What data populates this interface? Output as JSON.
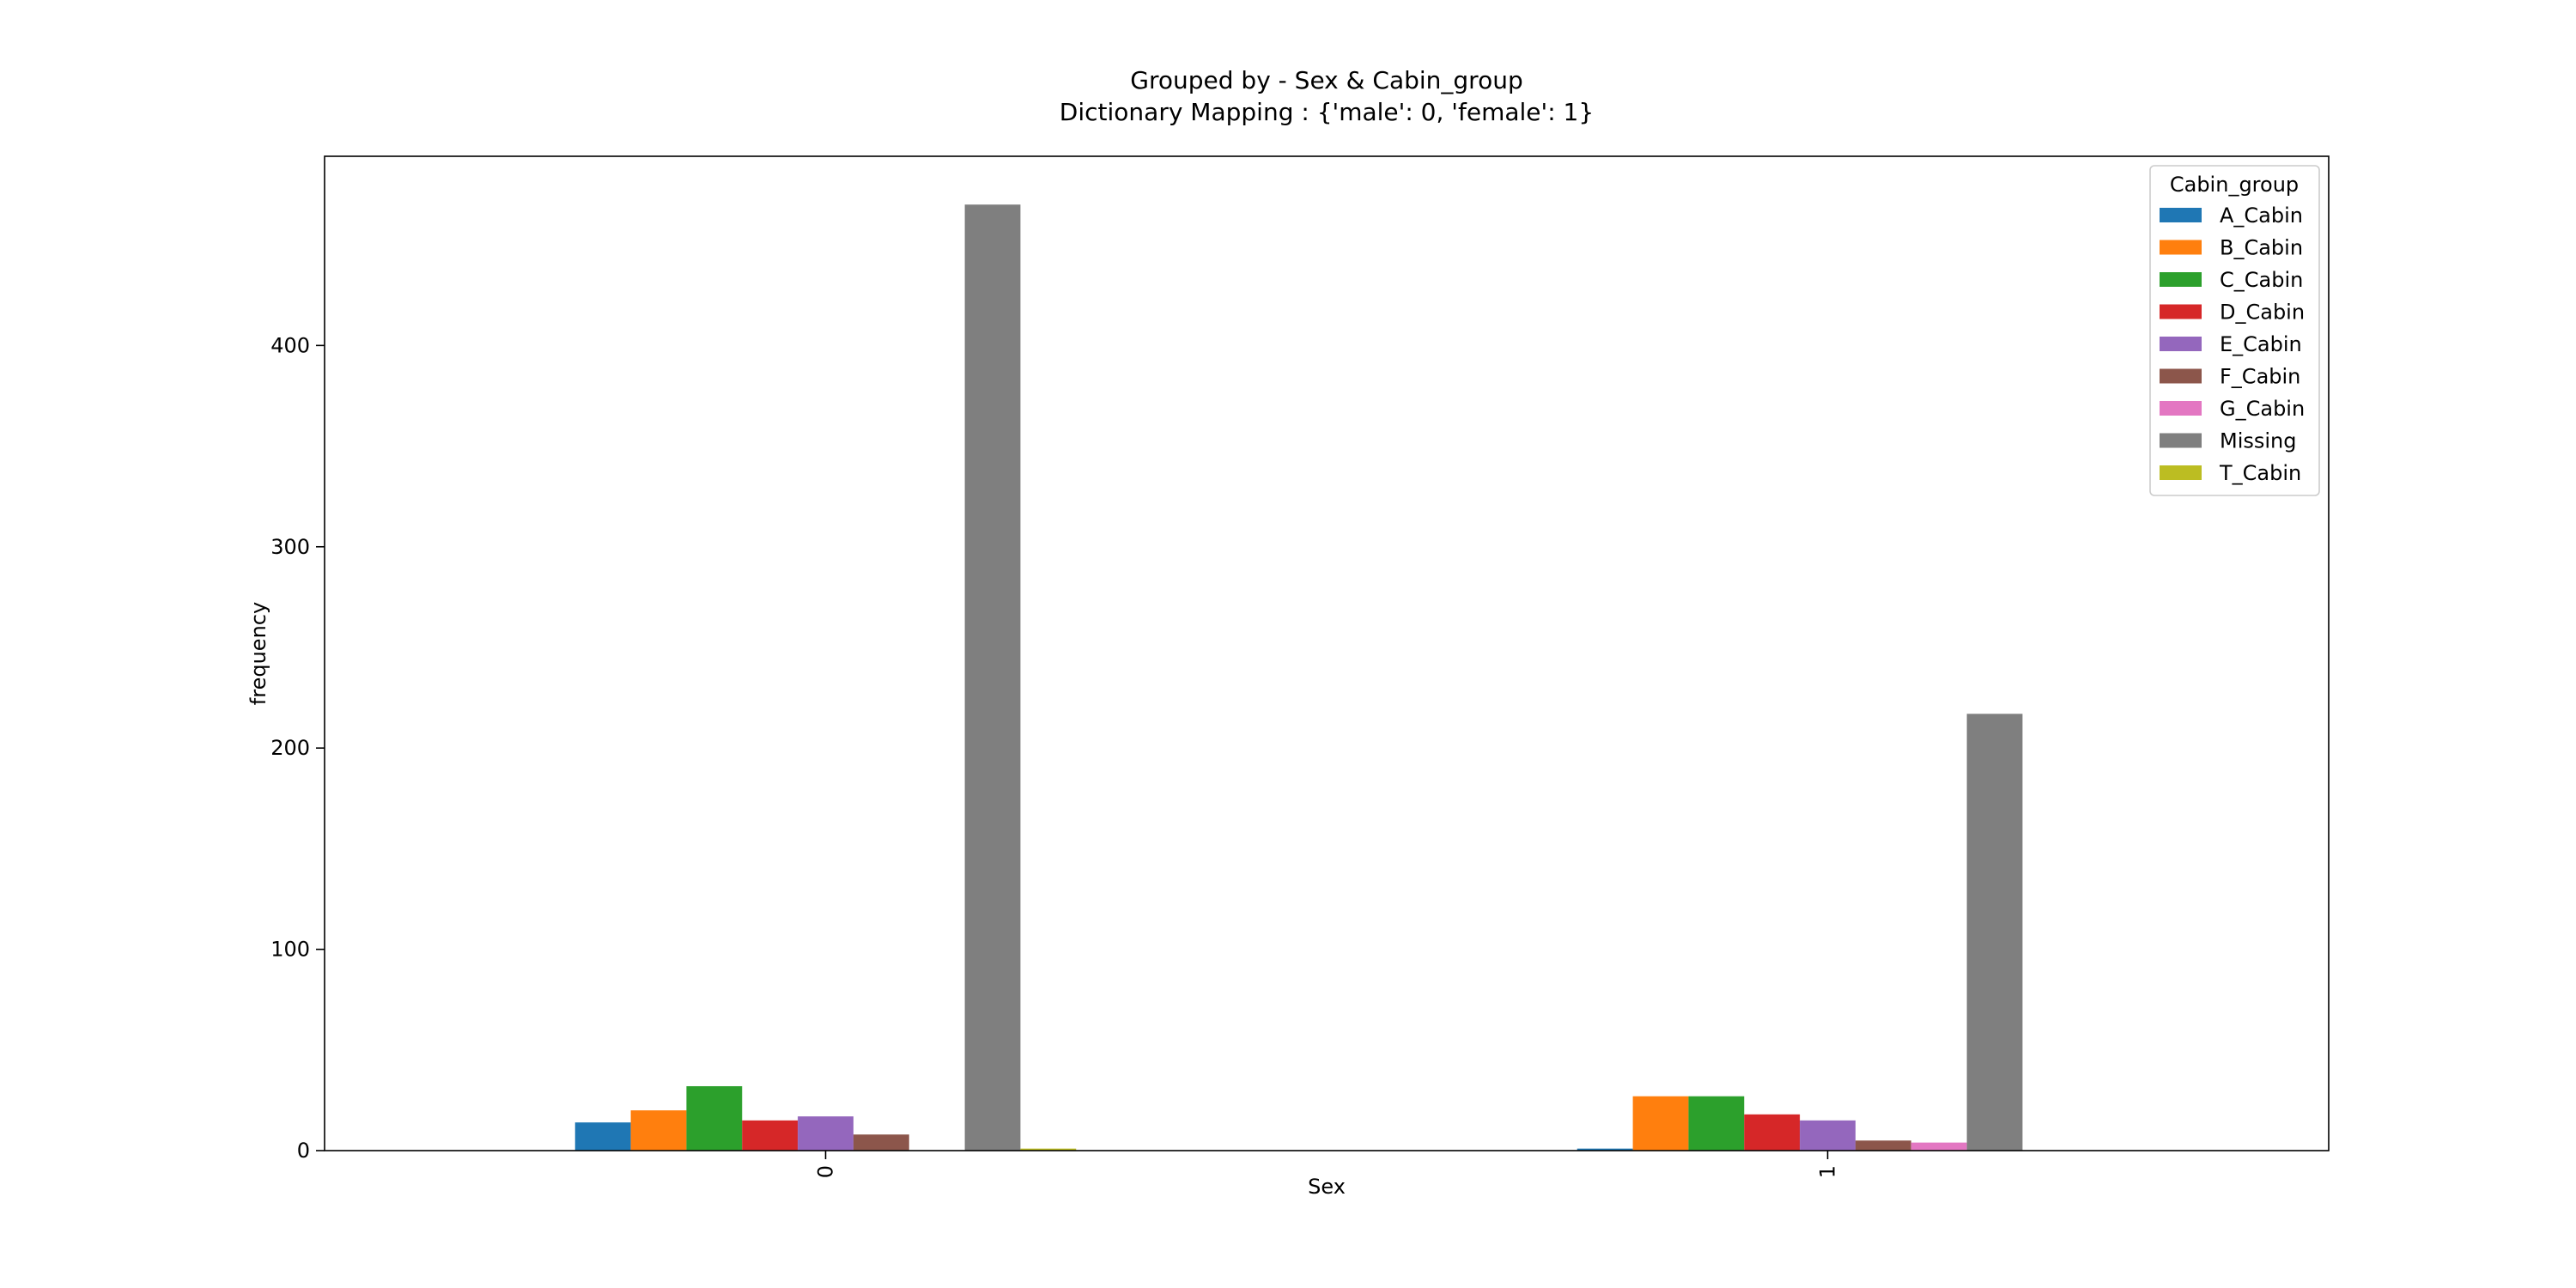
{
  "chart_data": {
    "type": "bar",
    "title": "Grouped by - Sex & Cabin_group",
    "subtitle": "Dictionary Mapping : {'male': 0, 'female': 1}",
    "xlabel": "Sex",
    "ylabel": "frequency",
    "categories": [
      "0",
      "1"
    ],
    "ylim": [
      0,
      494
    ],
    "yticks": [
      0,
      100,
      200,
      300,
      400
    ],
    "grid": false,
    "legend_title": "Cabin_group",
    "legend_position": "top-right",
    "series": [
      {
        "name": "A_Cabin",
        "color": "#1f77b4",
        "values": [
          14,
          1
        ]
      },
      {
        "name": "B_Cabin",
        "color": "#ff7f0e",
        "values": [
          20,
          27
        ]
      },
      {
        "name": "C_Cabin",
        "color": "#2ca02c",
        "values": [
          32,
          27
        ]
      },
      {
        "name": "D_Cabin",
        "color": "#d62728",
        "values": [
          15,
          18
        ]
      },
      {
        "name": "E_Cabin",
        "color": "#9467bd",
        "values": [
          17,
          15
        ]
      },
      {
        "name": "F_Cabin",
        "color": "#8c564b",
        "values": [
          8,
          5
        ]
      },
      {
        "name": "G_Cabin",
        "color": "#e377c2",
        "values": [
          0,
          4
        ]
      },
      {
        "name": "Missing",
        "color": "#7f7f7f",
        "values": [
          470,
          217
        ]
      },
      {
        "name": "T_Cabin",
        "color": "#bcbd22",
        "values": [
          1,
          0
        ]
      }
    ]
  }
}
